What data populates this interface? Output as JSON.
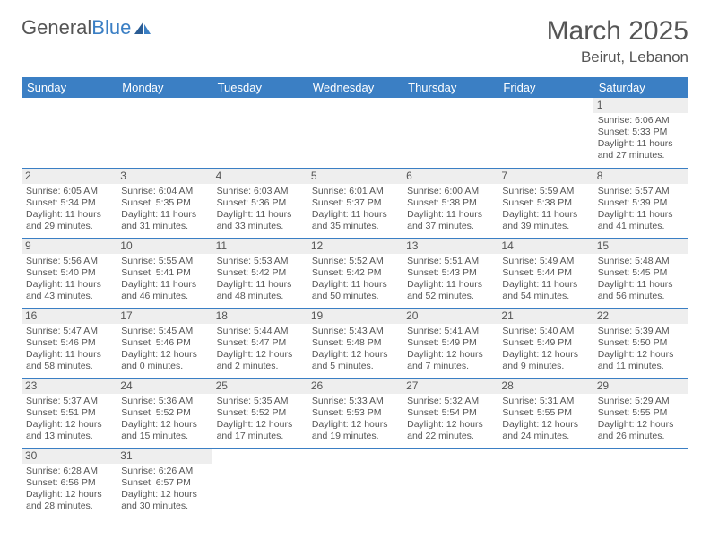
{
  "brand": {
    "part1": "General",
    "part2": "Blue"
  },
  "title": "March 2025",
  "location": "Beirut, Lebanon",
  "headerColors": {
    "bg": "#3b7fc4",
    "text": "#ffffff"
  },
  "dayHeaders": [
    "Sunday",
    "Monday",
    "Tuesday",
    "Wednesday",
    "Thursday",
    "Friday",
    "Saturday"
  ],
  "weeks": [
    [
      null,
      null,
      null,
      null,
      null,
      null,
      {
        "n": "1",
        "sr": "6:06 AM",
        "ss": "5:33 PM",
        "dl": "11 hours and 27 minutes."
      }
    ],
    [
      {
        "n": "2",
        "sr": "6:05 AM",
        "ss": "5:34 PM",
        "dl": "11 hours and 29 minutes."
      },
      {
        "n": "3",
        "sr": "6:04 AM",
        "ss": "5:35 PM",
        "dl": "11 hours and 31 minutes."
      },
      {
        "n": "4",
        "sr": "6:03 AM",
        "ss": "5:36 PM",
        "dl": "11 hours and 33 minutes."
      },
      {
        "n": "5",
        "sr": "6:01 AM",
        "ss": "5:37 PM",
        "dl": "11 hours and 35 minutes."
      },
      {
        "n": "6",
        "sr": "6:00 AM",
        "ss": "5:38 PM",
        "dl": "11 hours and 37 minutes."
      },
      {
        "n": "7",
        "sr": "5:59 AM",
        "ss": "5:38 PM",
        "dl": "11 hours and 39 minutes."
      },
      {
        "n": "8",
        "sr": "5:57 AM",
        "ss": "5:39 PM",
        "dl": "11 hours and 41 minutes."
      }
    ],
    [
      {
        "n": "9",
        "sr": "5:56 AM",
        "ss": "5:40 PM",
        "dl": "11 hours and 43 minutes."
      },
      {
        "n": "10",
        "sr": "5:55 AM",
        "ss": "5:41 PM",
        "dl": "11 hours and 46 minutes."
      },
      {
        "n": "11",
        "sr": "5:53 AM",
        "ss": "5:42 PM",
        "dl": "11 hours and 48 minutes."
      },
      {
        "n": "12",
        "sr": "5:52 AM",
        "ss": "5:42 PM",
        "dl": "11 hours and 50 minutes."
      },
      {
        "n": "13",
        "sr": "5:51 AM",
        "ss": "5:43 PM",
        "dl": "11 hours and 52 minutes."
      },
      {
        "n": "14",
        "sr": "5:49 AM",
        "ss": "5:44 PM",
        "dl": "11 hours and 54 minutes."
      },
      {
        "n": "15",
        "sr": "5:48 AM",
        "ss": "5:45 PM",
        "dl": "11 hours and 56 minutes."
      }
    ],
    [
      {
        "n": "16",
        "sr": "5:47 AM",
        "ss": "5:46 PM",
        "dl": "11 hours and 58 minutes."
      },
      {
        "n": "17",
        "sr": "5:45 AM",
        "ss": "5:46 PM",
        "dl": "12 hours and 0 minutes."
      },
      {
        "n": "18",
        "sr": "5:44 AM",
        "ss": "5:47 PM",
        "dl": "12 hours and 2 minutes."
      },
      {
        "n": "19",
        "sr": "5:43 AM",
        "ss": "5:48 PM",
        "dl": "12 hours and 5 minutes."
      },
      {
        "n": "20",
        "sr": "5:41 AM",
        "ss": "5:49 PM",
        "dl": "12 hours and 7 minutes."
      },
      {
        "n": "21",
        "sr": "5:40 AM",
        "ss": "5:49 PM",
        "dl": "12 hours and 9 minutes."
      },
      {
        "n": "22",
        "sr": "5:39 AM",
        "ss": "5:50 PM",
        "dl": "12 hours and 11 minutes."
      }
    ],
    [
      {
        "n": "23",
        "sr": "5:37 AM",
        "ss": "5:51 PM",
        "dl": "12 hours and 13 minutes."
      },
      {
        "n": "24",
        "sr": "5:36 AM",
        "ss": "5:52 PM",
        "dl": "12 hours and 15 minutes."
      },
      {
        "n": "25",
        "sr": "5:35 AM",
        "ss": "5:52 PM",
        "dl": "12 hours and 17 minutes."
      },
      {
        "n": "26",
        "sr": "5:33 AM",
        "ss": "5:53 PM",
        "dl": "12 hours and 19 minutes."
      },
      {
        "n": "27",
        "sr": "5:32 AM",
        "ss": "5:54 PM",
        "dl": "12 hours and 22 minutes."
      },
      {
        "n": "28",
        "sr": "5:31 AM",
        "ss": "5:55 PM",
        "dl": "12 hours and 24 minutes."
      },
      {
        "n": "29",
        "sr": "5:29 AM",
        "ss": "5:55 PM",
        "dl": "12 hours and 26 minutes."
      }
    ],
    [
      {
        "n": "30",
        "sr": "6:28 AM",
        "ss": "6:56 PM",
        "dl": "12 hours and 28 minutes."
      },
      {
        "n": "31",
        "sr": "6:26 AM",
        "ss": "6:57 PM",
        "dl": "12 hours and 30 minutes."
      },
      null,
      null,
      null,
      null,
      null
    ]
  ],
  "labels": {
    "sunrise": "Sunrise:",
    "sunset": "Sunset:",
    "daylight": "Daylight:"
  }
}
